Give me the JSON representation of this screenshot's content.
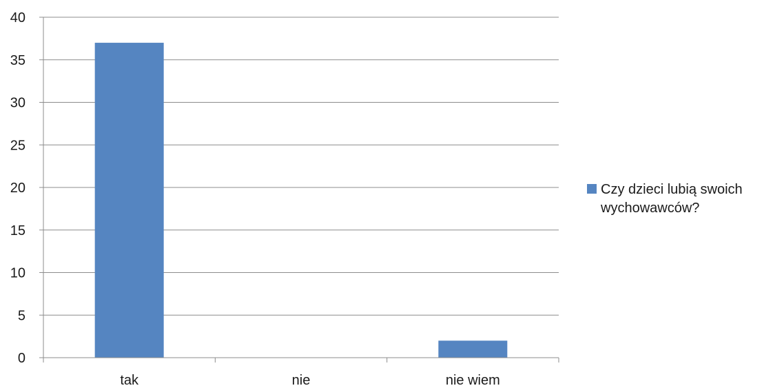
{
  "chart_data": {
    "type": "bar",
    "categories": [
      "tak",
      "nie",
      "nie wiem"
    ],
    "series": [
      {
        "name": "Czy dzieci lubią swoich wychowawców?",
        "values": [
          37,
          0,
          2
        ],
        "color": "#5585C1"
      }
    ],
    "ylim": [
      0,
      40
    ],
    "yticks": [
      0,
      5,
      10,
      15,
      20,
      25,
      30,
      35,
      40
    ],
    "grid": true,
    "legend_position": "right"
  }
}
